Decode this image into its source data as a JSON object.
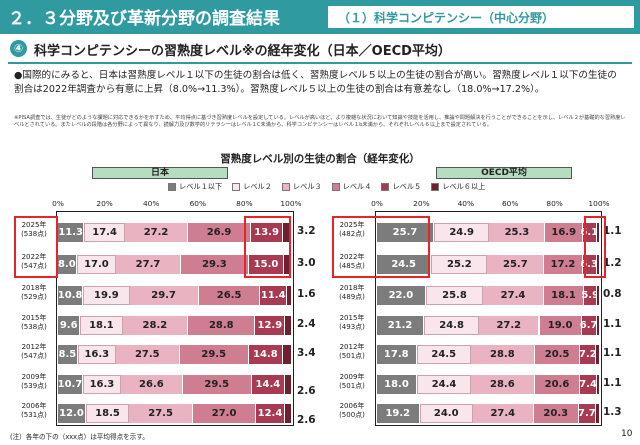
{
  "header": {
    "title": "２．３分野及び革新分野の調査結果",
    "subtitle": "（１）科学コンピテンシー（中心分野）"
  },
  "section": {
    "number": "④",
    "title": "科学コンピテンシーの習熟度レベル※の経年変化（日本／OECD平均）"
  },
  "bullet": "●国際的にみると、日本は習熟度レベル１以下の生徒の割合は低く、習熟度レベル５以上の生徒の割合が高い。習熟度レベル１以下の生徒の割合は2022年調査から有意に上昇（8.0%→11.3%）。習熟度レベル５以上の生徒の割合は有意差なし（18.0%→17.2%）。",
  "note": "※PISA調査では、生徒がどのような課題に対応できるかを示すため、平均得点に基づき習熟度レベルを設定している。レベルが高いほど、より複雑な状況において知識や技能を活用し、推論や問題解決を行うことができることを示し、レベル２が基礎的な習熟度レベルとされている。またレベルの段階は各分野によって異なり、読解力及び数学的リテラシーはレベル１C未満から、科学コンピテンシーはレベル１b未満から、それぞれレベル６以上まで設定されている。",
  "footnote": "(注）各年の下の（xxx点）は平均得点を示す。",
  "page_number": "10",
  "chart_data": {
    "type": "bar",
    "stacked": true,
    "orientation": "horizontal",
    "title": "習熟度レベル別の生徒の割合（経年変化）",
    "xlim": [
      0,
      100
    ],
    "tick_labels": [
      "0%",
      "20%",
      "40%",
      "60%",
      "80%",
      "100%"
    ],
    "legend": {
      "position": "top",
      "entries": [
        "レベル１以下",
        "レベル２",
        "レベル３",
        "レベル４",
        "レベル５",
        "レベル６以上"
      ],
      "colors": [
        "#7c7c7c",
        "#f8e6ec",
        "#e9b3c2",
        "#cf7e91",
        "#a83a51",
        "#6f1f2e"
      ]
    },
    "panels": [
      {
        "name": "日本",
        "categories": [
          "2025年",
          "2022年",
          "2018年",
          "2015年",
          "2012年",
          "2009年",
          "2006年"
        ],
        "score_labels": [
          "(538点)",
          "(547点)",
          "(529点)",
          "(538点)",
          "(547点)",
          "(539点)",
          "(531点)"
        ],
        "series": [
          {
            "name": "レベル１以下",
            "values": [
              11.3,
              8.0,
              10.8,
              9.6,
              8.5,
              10.7,
              12.0
            ]
          },
          {
            "name": "レベル２",
            "values": [
              17.4,
              17.0,
              19.9,
              18.1,
              16.3,
              16.3,
              18.5
            ]
          },
          {
            "name": "レベル３",
            "values": [
              27.2,
              27.7,
              29.7,
              28.2,
              27.5,
              26.6,
              27.5
            ]
          },
          {
            "name": "レベル４",
            "values": [
              26.9,
              29.3,
              26.5,
              28.8,
              29.5,
              29.5,
              27.0
            ]
          },
          {
            "name": "レベル５",
            "values": [
              13.9,
              15.0,
              11.4,
              12.9,
              14.8,
              14.4,
              12.4
            ]
          },
          {
            "name": "レベル６以上",
            "values": [
              3.2,
              3.0,
              1.6,
              2.4,
              3.4,
              2.6,
              2.6
            ]
          }
        ]
      },
      {
        "name": "OECD平均",
        "categories": [
          "2025年",
          "2022年",
          "2018年",
          "2015年",
          "2012年",
          "2009年",
          "2006年"
        ],
        "score_labels": [
          "(482点)",
          "(485点)",
          "(489点)",
          "(493点)",
          "(501点)",
          "(501点)",
          "(500点)"
        ],
        "series": [
          {
            "name": "レベル１以下",
            "values": [
              25.7,
              24.5,
              22.0,
              21.2,
              17.8,
              18.0,
              19.2
            ]
          },
          {
            "name": "レベル２",
            "values": [
              24.9,
              25.2,
              25.8,
              24.8,
              24.5,
              24.4,
              24.0
            ]
          },
          {
            "name": "レベル３",
            "values": [
              25.3,
              25.7,
              27.4,
              27.2,
              28.8,
              28.6,
              27.4
            ]
          },
          {
            "name": "レベル４",
            "values": [
              16.9,
              17.2,
              18.1,
              19.0,
              20.5,
              20.6,
              20.3
            ]
          },
          {
            "name": "レベル５",
            "values": [
              6.1,
              6.3,
              5.9,
              6.7,
              7.2,
              7.4,
              7.7
            ]
          },
          {
            "name": "レベル６以上",
            "values": [
              1.1,
              1.2,
              0.8,
              1.1,
              1.1,
              1.1,
              1.3
            ]
          }
        ]
      }
    ]
  }
}
